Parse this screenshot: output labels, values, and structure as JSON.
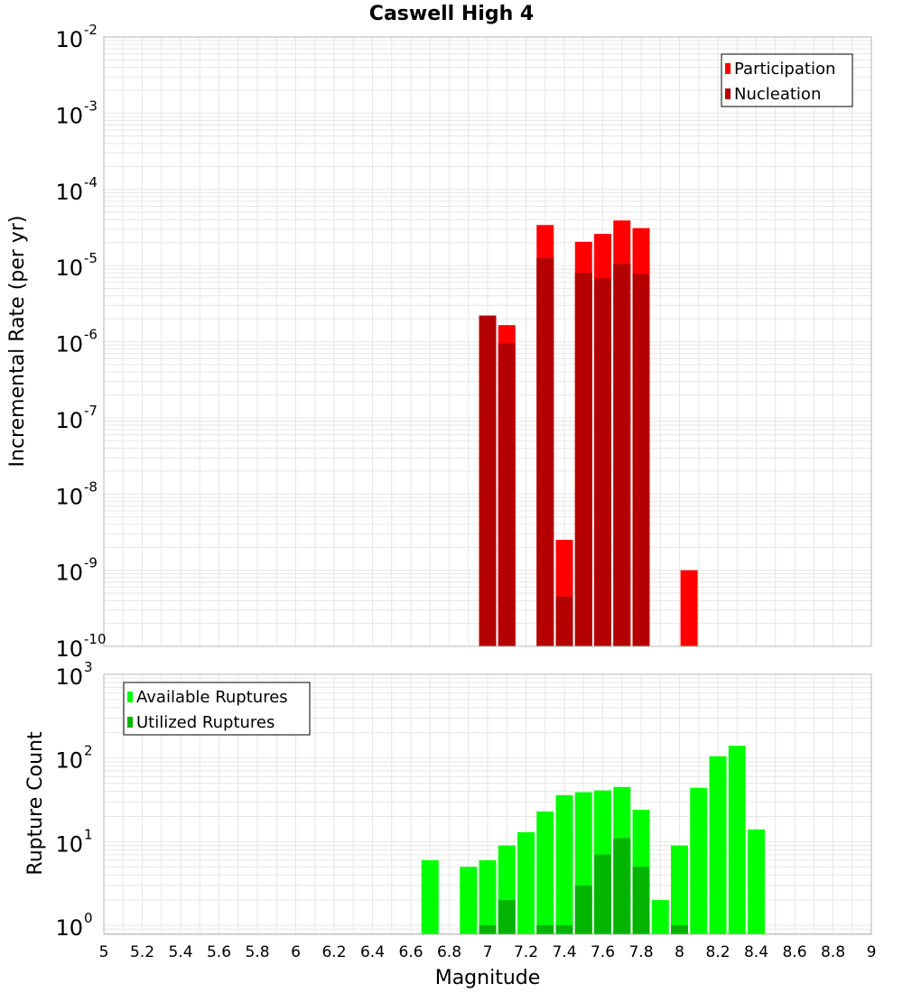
{
  "chart_data": [
    {
      "type": "bar",
      "title": "Caswell High 4",
      "ylabel": "Incremental Rate (per yr)",
      "xlabel": "",
      "xlim": [
        5,
        9
      ],
      "ylim": [
        1e-10,
        0.01
      ],
      "y_scale": "log",
      "grid": true,
      "legend_position": "top-right",
      "overlay": true,
      "x": [
        7.0,
        7.1,
        7.3,
        7.4,
        7.5,
        7.6,
        7.7,
        7.8,
        8.05
      ],
      "series": [
        {
          "name": "Participation",
          "color": "#ff0000",
          "values": [
            2.2e-06,
            1.65e-06,
            3.4e-05,
            2.5e-09,
            2.05e-05,
            2.6e-05,
            3.9e-05,
            3.1e-05,
            1e-09
          ]
        },
        {
          "name": "Nucleation",
          "color": "#b40000",
          "values": [
            2.2e-06,
            9.5e-07,
            1.25e-05,
            4.5e-10,
            8e-06,
            6.8e-06,
            1.05e-05,
            7.8e-06,
            null
          ]
        }
      ]
    },
    {
      "type": "bar",
      "title": "",
      "ylabel": "Rupture Count",
      "xlabel": "Magnitude",
      "xlim": [
        5,
        9
      ],
      "ylim": [
        0.78,
        1000
      ],
      "y_scale": "log",
      "grid": true,
      "legend_position": "top-left",
      "overlay": true,
      "x": [
        6.7,
        6.9,
        7.0,
        7.1,
        7.2,
        7.3,
        7.4,
        7.5,
        7.6,
        7.7,
        7.8,
        7.9,
        8.0,
        8.1,
        8.2,
        8.3,
        8.4
      ],
      "series": [
        {
          "name": "Available Ruptures",
          "color": "#00ff00",
          "values": [
            6,
            5,
            6,
            9,
            13,
            23,
            36,
            39,
            41,
            45,
            24,
            2,
            9,
            44,
            105,
            140,
            14
          ]
        },
        {
          "name": "Utilized Ruptures",
          "color": "#00b400",
          "values": [
            null,
            null,
            1,
            2,
            null,
            1,
            1,
            3,
            7,
            11,
            5,
            null,
            1,
            null,
            null,
            null,
            null
          ]
        }
      ]
    }
  ],
  "x_ticks": [
    "5",
    "5.2",
    "5.4",
    "5.6",
    "5.8",
    "6",
    "6.2",
    "6.4",
    "6.6",
    "6.8",
    "7",
    "7.2",
    "7.4",
    "7.6",
    "7.8",
    "8",
    "8.2",
    "8.4",
    "8.6",
    "8.8",
    "9"
  ],
  "top_y_ticks": [
    {
      "value": 1e-10,
      "base": "10",
      "exp": "-10"
    },
    {
      "value": 1e-09,
      "base": "10",
      "exp": "-9"
    },
    {
      "value": 1e-08,
      "base": "10",
      "exp": "-8"
    },
    {
      "value": 1e-07,
      "base": "10",
      "exp": "-7"
    },
    {
      "value": 1e-06,
      "base": "10",
      "exp": "-6"
    },
    {
      "value": 1e-05,
      "base": "10",
      "exp": "-5"
    },
    {
      "value": 0.0001,
      "base": "10",
      "exp": "-4"
    },
    {
      "value": 0.001,
      "base": "10",
      "exp": "-3"
    },
    {
      "value": 0.01,
      "base": "10",
      "exp": "-2"
    }
  ],
  "bottom_y_ticks": [
    {
      "value": 1,
      "base": "10",
      "exp": "0"
    },
    {
      "value": 10,
      "base": "10",
      "exp": "1"
    },
    {
      "value": 100,
      "base": "10",
      "exp": "2"
    },
    {
      "value": 1000,
      "base": "10",
      "exp": "3"
    }
  ],
  "colors": {
    "grid": "#e6e6e6",
    "frame": "#b4b4b4"
  }
}
